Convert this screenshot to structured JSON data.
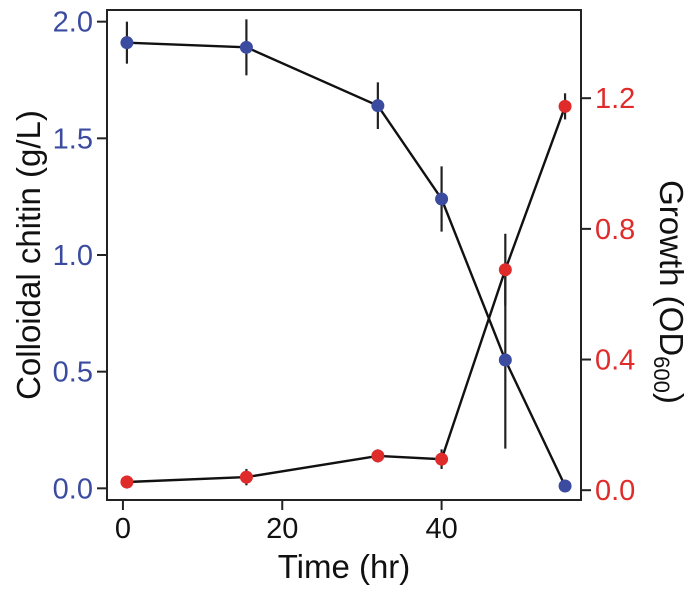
{
  "chart_data": {
    "type": "line",
    "xlabel": "Time (hr)",
    "ylabel_left": "Colloidal chitin (g/L)",
    "ylabel_right": "Growth (OD600)",
    "ylabel_right_main": "Growth (OD",
    "ylabel_right_sub": "600",
    "ylabel_right_close": ")",
    "xlim": [
      -2,
      57.5
    ],
    "ylim_left": [
      -0.05,
      2.05
    ],
    "ylim_right": [
      -0.03,
      1.47
    ],
    "x_ticks": [
      "0",
      "20",
      "40"
    ],
    "x_tick_values": [
      0,
      20,
      40
    ],
    "y_left_ticks": [
      "0.0",
      "0.5",
      "1.0",
      "1.5",
      "2.0"
    ],
    "y_left_tick_values": [
      0,
      0.5,
      1.0,
      1.5,
      2.0
    ],
    "y_right_ticks": [
      "0.0",
      "0.4",
      "0.8",
      "1.2"
    ],
    "y_right_tick_values": [
      0,
      0.4,
      0.8,
      1.2
    ],
    "grid": false,
    "legend": "none",
    "series": [
      {
        "axis": "left",
        "color": "#3a4ba0",
        "x": [
          0.5,
          15.5,
          32,
          40,
          48,
          55.5
        ],
        "y": [
          1.91,
          1.89,
          1.64,
          1.24,
          0.55,
          0.01
        ],
        "err": [
          0.09,
          0.12,
          0.1,
          0.14,
          0.38,
          0.0
        ]
      },
      {
        "axis": "right",
        "color": "#e02b2b",
        "x": [
          0.5,
          15.5,
          32,
          40,
          48,
          55.5
        ],
        "y": [
          0.025,
          0.04,
          0.105,
          0.095,
          0.675,
          1.175
        ],
        "err": [
          0.02,
          0.025,
          0.02,
          0.03,
          0.11,
          0.04
        ]
      }
    ]
  }
}
